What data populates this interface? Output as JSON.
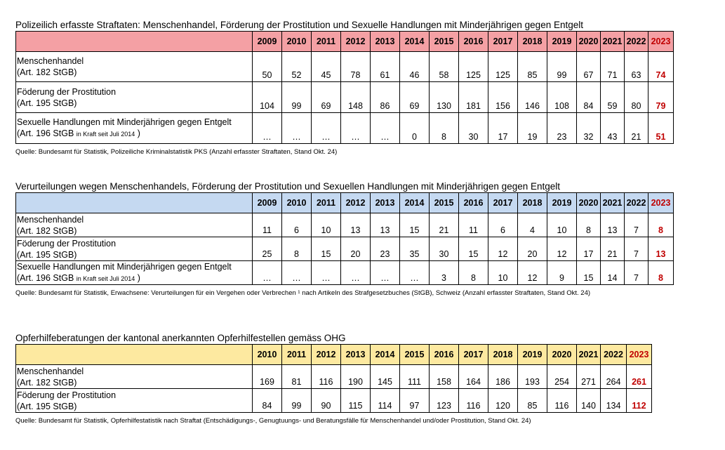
{
  "table1": {
    "title": "Polizeilich erfasste Straftaten: Menschenhandel, Förderung der Prostitution und Sexuelle Handlungen mit Minderjährigen gegen Entgelt",
    "years": [
      "2009",
      "2010",
      "2011",
      "2012",
      "2013",
      "2014",
      "2015",
      "2016",
      "2017",
      "2018",
      "2019",
      "2020",
      "2021",
      "2022",
      "2023"
    ],
    "rows": [
      {
        "label1": "Menschenhandel",
        "label2": "(Art. 182 StGB)",
        "note": "",
        "values": [
          "50",
          "52",
          "45",
          "78",
          "61",
          "46",
          "58",
          "125",
          "125",
          "85",
          "99",
          "67",
          "71",
          "63",
          "74"
        ]
      },
      {
        "label1": "Föderung der Prostitution",
        "label2": "(Art. 195 StGB)",
        "note": "",
        "values": [
          "104",
          "99",
          "69",
          "148",
          "86",
          "69",
          "130",
          "181",
          "156",
          "146",
          "108",
          "84",
          "59",
          "80",
          "79"
        ]
      },
      {
        "label1": "Sexuelle Handlungen mit Minderjährigen gegen Entgelt",
        "label2": "(Art. 196 StGB",
        "note": "in Kraft seit Juli 2014",
        "close": ")",
        "values": [
          "…",
          "…",
          "…",
          "…",
          "…",
          "0",
          "8",
          "30",
          "17",
          "19",
          "23",
          "32",
          "43",
          "21",
          "51"
        ]
      }
    ],
    "source": "Quelle: Bundesamt für Statistik, Polizeiliche Kriminalstatistik PKS (Anzahl erfasster Straftaten, Stand Okt. 24)"
  },
  "table2": {
    "title": "Verurteilungen wegen Menschenhandels, Förderung der Prostitution und Sexuellen Handlungen mit Minderjährigen gegen Entgelt",
    "years": [
      "2009",
      "2010",
      "2011",
      "2012",
      "2013",
      "2014",
      "2015",
      "2016",
      "2017",
      "2018",
      "2019",
      "2020",
      "2021",
      "2022",
      "2023"
    ],
    "rows": [
      {
        "label1": "Menschenhandel",
        "label2": "(Art. 182 StGB)",
        "note": "",
        "values": [
          "11",
          "6",
          "10",
          "13",
          "13",
          "15",
          "21",
          "11",
          "6",
          "4",
          "10",
          "8",
          "13",
          "7",
          "8"
        ]
      },
      {
        "label1": "Föderung der Prostitution",
        "label2": "(Art. 195 StGB)",
        "note": "",
        "values": [
          "25",
          "8",
          "15",
          "20",
          "23",
          "35",
          "30",
          "15",
          "12",
          "20",
          "12",
          "17",
          "21",
          "7",
          "13"
        ]
      },
      {
        "label1": "Sexuelle Handlungen mit Minderjährigen gegen Entgelt",
        "label2": "(Art. 196 StGB",
        "note": "in Kraft seit Juli 2014",
        "close": ")",
        "values": [
          "…",
          "…",
          "…",
          "…",
          "…",
          "…",
          "3",
          "8",
          "10",
          "12",
          "9",
          "15",
          "14",
          "7",
          "8"
        ]
      }
    ],
    "source": "Quelle: Bundesamt für Statistik, Erwachsene: Verurteilungen für ein Vergehen oder Verbrechen ¹ nach Artikeln des Strafgesetzbuches (StGB), Schweiz (Anzahl erfasster Straftaten, Stand Okt. 24)"
  },
  "table3": {
    "title": "Opferhilfeberatungen der kantonal anerkannten Opferhilfestellen gemäss OHG",
    "years": [
      "2010",
      "2011",
      "2012",
      "2013",
      "2014",
      "2015",
      "2016",
      "2017",
      "2018",
      "2019",
      "2020",
      "2021",
      "2022",
      "2023"
    ],
    "rows": [
      {
        "label1": "Menschenhandel",
        "label2": "(Art. 182 StGB)",
        "note": "",
        "values": [
          "169",
          "81",
          "116",
          "190",
          "145",
          "111",
          "158",
          "164",
          "186",
          "193",
          "254",
          "271",
          "264",
          "261"
        ]
      },
      {
        "label1": "Föderung der Prostitution",
        "label2": "(Art. 195 StGB)",
        "note": "",
        "values": [
          "84",
          "99",
          "90",
          "115",
          "114",
          "97",
          "123",
          "116",
          "120",
          "85",
          "116",
          "140",
          "134",
          "112"
        ]
      }
    ],
    "source": "Quelle: Bundesamt für Statistik, Opferhilfestatistik nach Straftat (Entschädigungs-, Genugtuungs- und Beratungsfälle für Menschenhandel und/oder Prostitution, Stand Okt. 24)"
  },
  "colors": {
    "header_pink": "#f4a0a4",
    "header_blue": "#c5d9f1",
    "header_yellow": "#fde9a0",
    "highlight_red": "#c00000"
  }
}
